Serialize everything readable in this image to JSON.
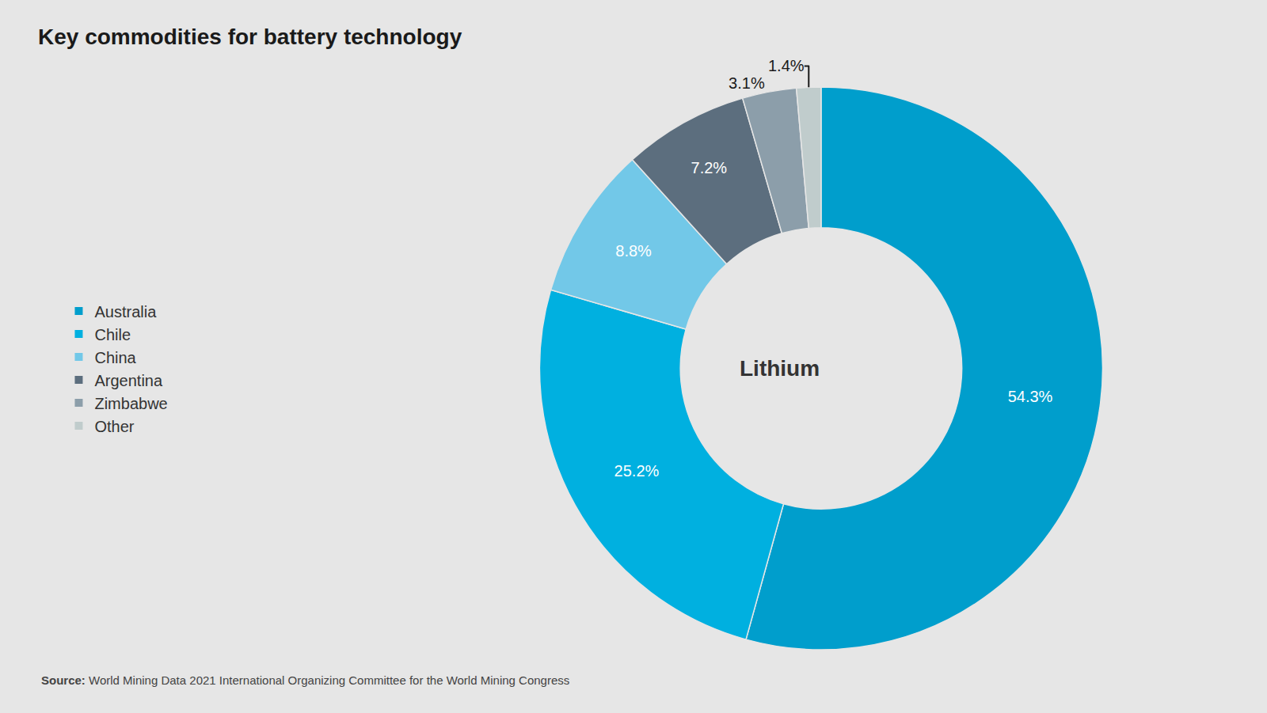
{
  "chart_data": {
    "type": "pie",
    "title": "Key commodities for battery technology",
    "annotations": [
      "Lithium"
    ],
    "source": "Source: World Mining Data 2021 International Organizing Committee for the World Mining Congress",
    "categories": [
      "Australia",
      "Chile",
      "China",
      "Argentina",
      "Zimbabwe",
      "Other"
    ],
    "values": [
      54.3,
      25.2,
      8.8,
      7.2,
      3.1,
      1.4
    ],
    "value_labels": [
      "54.3%",
      "25.2%",
      "8.8%",
      "7.2%",
      "3.1%",
      "1.4%"
    ],
    "colors": [
      "#009ECC",
      "#00B0E0",
      "#72C8E8",
      "#5C6E7E",
      "#8C9EAA",
      "#C0CCCC"
    ],
    "data_labels": true,
    "legend": "left"
  }
}
